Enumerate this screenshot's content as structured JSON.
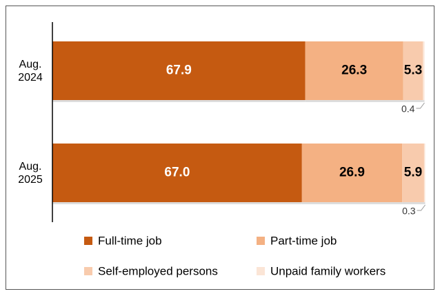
{
  "chart_data": {
    "type": "stacked-barh",
    "categories": [
      "Aug.\n2024",
      "Aug.\n2025"
    ],
    "xlim": [
      0,
      100
    ],
    "series": [
      {
        "name": "Full-time job",
        "color": "#c55a11",
        "values": [
          67.9,
          67.0
        ],
        "value_labels": [
          "67.9",
          "67.0"
        ]
      },
      {
        "name": "Part-time job",
        "color": "#f4b183",
        "values": [
          26.3,
          26.9
        ],
        "value_labels": [
          "26.3",
          "26.9"
        ]
      },
      {
        "name": "Self-employed persons",
        "color": "#f8cbad",
        "values": [
          5.3,
          5.9
        ],
        "value_labels": [
          "5.3",
          "5.9"
        ]
      },
      {
        "name": "Unpaid family workers",
        "color": "#fbe5d6",
        "values": [
          0.4,
          0.3
        ],
        "value_labels": [
          "0.4",
          "0.3"
        ]
      }
    ]
  }
}
